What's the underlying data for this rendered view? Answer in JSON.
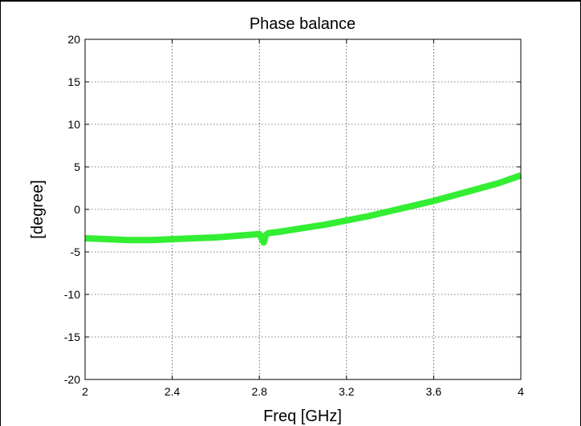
{
  "chart_data": {
    "type": "line",
    "title": "Phase balance",
    "xlabel": "Freq [GHz]",
    "ylabel": "[degree]",
    "xlim": [
      2,
      4
    ],
    "ylim": [
      -20,
      20
    ],
    "xticks": [
      2,
      2.4,
      2.8,
      3.2,
      3.6,
      4
    ],
    "xtick_labels": [
      "2",
      "2.4",
      "2.8",
      "3.2",
      "3.6",
      "4"
    ],
    "yticks": [
      20,
      15,
      10,
      5,
      0,
      -5,
      -10,
      -15,
      -20
    ],
    "ytick_labels": [
      "20",
      "15",
      "10",
      "5",
      "0",
      "-5",
      "-10",
      "-15",
      "-20"
    ],
    "grid": true,
    "series": [
      {
        "color": "#33ee33",
        "x": [
          2.0,
          2.1,
          2.2,
          2.3,
          2.4,
          2.5,
          2.6,
          2.7,
          2.8,
          2.82,
          2.83,
          2.84,
          2.9,
          3.0,
          3.1,
          3.2,
          3.3,
          3.4,
          3.5,
          3.6,
          3.7,
          3.8,
          3.9,
          4.0
        ],
        "y": [
          -3.4,
          -3.5,
          -3.6,
          -3.6,
          -3.5,
          -3.4,
          -3.3,
          -3.1,
          -2.9,
          -3.9,
          -3.0,
          -2.8,
          -2.6,
          -2.2,
          -1.8,
          -1.3,
          -0.8,
          -0.2,
          0.4,
          1.0,
          1.7,
          2.4,
          3.1,
          4.0
        ]
      }
    ]
  }
}
